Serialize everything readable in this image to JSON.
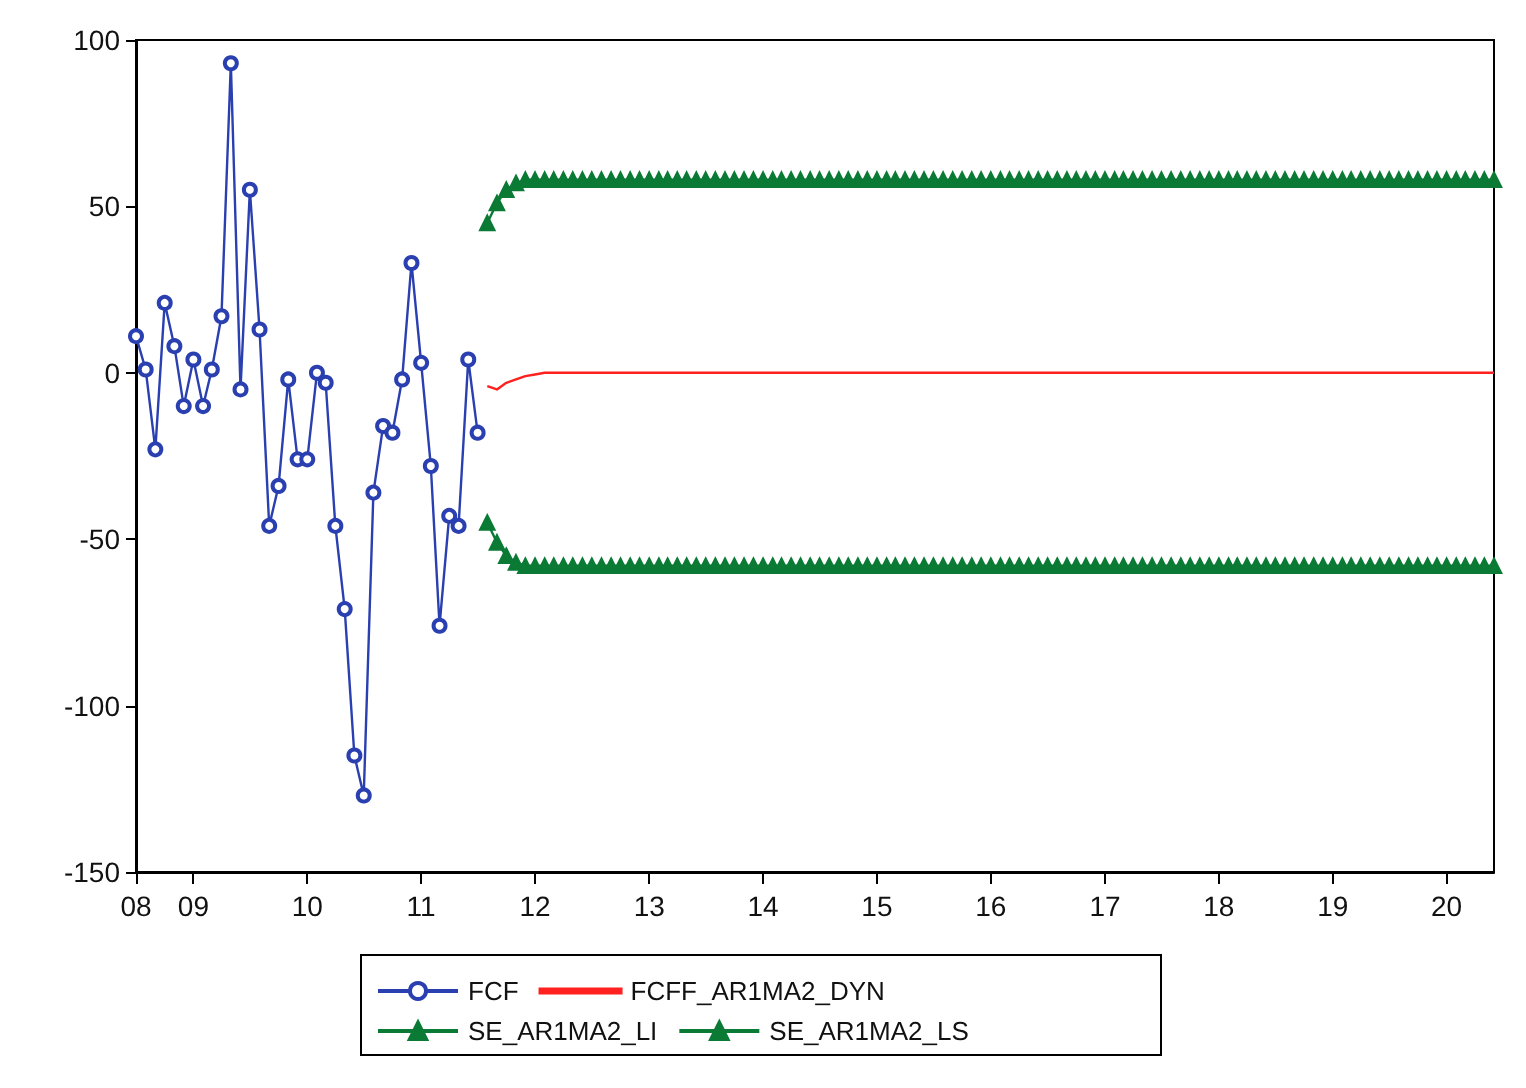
{
  "chart_data": {
    "type": "line",
    "xlim": [
      "2008-07",
      "2020-06"
    ],
    "ylim": [
      -150,
      100
    ],
    "yticks": [
      -150,
      -100,
      -50,
      0,
      50,
      100
    ],
    "xticks": [
      {
        "value": "2008-07",
        "label": "08"
      },
      {
        "value": "2009-01",
        "label": "09"
      },
      {
        "value": "2010-01",
        "label": "10"
      },
      {
        "value": "2011-01",
        "label": "11"
      },
      {
        "value": "2012-01",
        "label": "12"
      },
      {
        "value": "2013-01",
        "label": "13"
      },
      {
        "value": "2014-01",
        "label": "14"
      },
      {
        "value": "2015-01",
        "label": "15"
      },
      {
        "value": "2016-01",
        "label": "16"
      },
      {
        "value": "2017-01",
        "label": "17"
      },
      {
        "value": "2018-01",
        "label": "18"
      },
      {
        "value": "2019-01",
        "label": "19"
      },
      {
        "value": "2020-01",
        "label": "20"
      }
    ],
    "grid": false,
    "legend": "bottom",
    "line_style": "solid",
    "x": [
      "2011-08",
      "2011-09",
      "2011-10",
      "2011-11",
      "2011-12",
      "2012-01",
      "2012-02",
      "2012-03",
      "2012-04",
      "2012-05",
      "2012-06",
      "2012-07",
      "2012-08",
      "2012-09",
      "2012-10",
      "2012-11",
      "2012-12",
      "2013-01",
      "2013-02",
      "2013-03",
      "2013-04",
      "2013-05",
      "2013-06",
      "2013-07",
      "2013-08",
      "2013-09",
      "2013-10",
      "2013-11",
      "2013-12",
      "2014-01",
      "2014-02",
      "2014-03",
      "2014-04",
      "2014-05",
      "2014-06",
      "2014-07",
      "2014-08",
      "2014-09",
      "2014-10",
      "2014-11",
      "2014-12",
      "2015-01",
      "2015-02",
      "2015-03",
      "2015-04",
      "2015-05",
      "2015-06",
      "2015-07",
      "2015-08",
      "2015-09",
      "2015-10",
      "2015-11",
      "2015-12",
      "2016-01",
      "2016-02",
      "2016-03",
      "2016-04",
      "2016-05",
      "2016-06",
      "2016-07",
      "2016-08",
      "2016-09",
      "2016-10",
      "2016-11",
      "2016-12",
      "2017-01",
      "2017-02",
      "2017-03",
      "2017-04",
      "2017-05",
      "2017-06",
      "2017-07",
      "2017-08",
      "2017-09",
      "2017-10",
      "2017-11",
      "2017-12",
      "2018-01",
      "2018-02",
      "2018-03",
      "2018-04",
      "2018-05",
      "2018-06",
      "2018-07",
      "2018-08",
      "2018-09",
      "2018-10",
      "2018-11",
      "2018-12",
      "2019-01",
      "2019-02",
      "2019-03",
      "2019-04",
      "2019-05",
      "2019-06",
      "2019-07",
      "2019-08",
      "2019-09",
      "2019-10",
      "2019-11",
      "2019-12",
      "2020-01",
      "2020-02",
      "2020-03",
      "2020-04",
      "2020-05",
      "2020-06"
    ],
    "series": [
      {
        "name": "FCF",
        "color": "#2a3fb0",
        "marker": "circle",
        "x": [
          "2008-07",
          "2008-08",
          "2008-09",
          "2008-10",
          "2008-11",
          "2008-12",
          "2009-01",
          "2009-02",
          "2009-03",
          "2009-04",
          "2009-05",
          "2009-06",
          "2009-07",
          "2009-08",
          "2009-09",
          "2009-10",
          "2009-11",
          "2009-12",
          "2010-01",
          "2010-02",
          "2010-03",
          "2010-04",
          "2010-05",
          "2010-06",
          "2010-07",
          "2010-08",
          "2010-09",
          "2010-10",
          "2010-11",
          "2010-12",
          "2011-01",
          "2011-02",
          "2011-03",
          "2011-04",
          "2011-05",
          "2011-06",
          "2011-07"
        ],
        "values": [
          11,
          1,
          -23,
          21,
          8,
          -10,
          4,
          -10,
          1,
          17,
          93,
          -5,
          55,
          13,
          -46,
          -34,
          -2,
          -26,
          -26,
          0,
          -3,
          -46,
          -71,
          -115,
          -127,
          -36,
          -16,
          -18,
          -2,
          33,
          3,
          -28,
          -76,
          -43,
          -46,
          4,
          -18
        ]
      },
      {
        "name": "FCFF_AR1MA2_DYN",
        "color": "#ff2020",
        "marker": "none",
        "values": [
          -4,
          -5,
          -3,
          -2,
          -1,
          -0.5,
          0,
          0,
          0,
          0,
          0,
          0,
          0,
          0,
          0,
          0,
          0,
          0,
          0,
          0,
          0,
          0,
          0,
          0,
          0,
          0,
          0,
          0,
          0,
          0,
          0,
          0,
          0,
          0,
          0,
          0,
          0,
          0,
          0,
          0,
          0,
          0,
          0,
          0,
          0,
          0,
          0,
          0,
          0,
          0,
          0,
          0,
          0,
          0,
          0,
          0,
          0,
          0,
          0,
          0,
          0,
          0,
          0,
          0,
          0,
          0,
          0,
          0,
          0,
          0,
          0,
          0,
          0,
          0,
          0,
          0,
          0,
          0,
          0,
          0,
          0,
          0,
          0,
          0,
          0,
          0,
          0,
          0,
          0,
          0,
          0,
          0,
          0,
          0,
          0,
          0,
          0,
          0,
          0,
          0,
          0,
          0,
          0,
          0,
          0,
          0,
          0
        ]
      },
      {
        "name": "SE_AR1MA2_LI",
        "color": "#0a7a35",
        "marker": "triangle",
        "values": [
          -45,
          -51,
          -55,
          -57,
          -58,
          -58,
          -58,
          -58,
          -58,
          -58,
          -58,
          -58,
          -58,
          -58,
          -58,
          -58,
          -58,
          -58,
          -58,
          -58,
          -58,
          -58,
          -58,
          -58,
          -58,
          -58,
          -58,
          -58,
          -58,
          -58,
          -58,
          -58,
          -58,
          -58,
          -58,
          -58,
          -58,
          -58,
          -58,
          -58,
          -58,
          -58,
          -58,
          -58,
          -58,
          -58,
          -58,
          -58,
          -58,
          -58,
          -58,
          -58,
          -58,
          -58,
          -58,
          -58,
          -58,
          -58,
          -58,
          -58,
          -58,
          -58,
          -58,
          -58,
          -58,
          -58,
          -58,
          -58,
          -58,
          -58,
          -58,
          -58,
          -58,
          -58,
          -58,
          -58,
          -58,
          -58,
          -58,
          -58,
          -58,
          -58,
          -58,
          -58,
          -58,
          -58,
          -58,
          -58,
          -58,
          -58,
          -58,
          -58,
          -58,
          -58,
          -58,
          -58,
          -58,
          -58,
          -58,
          -58,
          -58,
          -58,
          -58,
          -58,
          -58,
          -58,
          -58
        ]
      },
      {
        "name": "SE_AR1MA2_LS",
        "color": "#0a7a35",
        "marker": "triangle",
        "values": [
          45,
          51,
          55,
          57,
          58,
          58,
          58,
          58,
          58,
          58,
          58,
          58,
          58,
          58,
          58,
          58,
          58,
          58,
          58,
          58,
          58,
          58,
          58,
          58,
          58,
          58,
          58,
          58,
          58,
          58,
          58,
          58,
          58,
          58,
          58,
          58,
          58,
          58,
          58,
          58,
          58,
          58,
          58,
          58,
          58,
          58,
          58,
          58,
          58,
          58,
          58,
          58,
          58,
          58,
          58,
          58,
          58,
          58,
          58,
          58,
          58,
          58,
          58,
          58,
          58,
          58,
          58,
          58,
          58,
          58,
          58,
          58,
          58,
          58,
          58,
          58,
          58,
          58,
          58,
          58,
          58,
          58,
          58,
          58,
          58,
          58,
          58,
          58,
          58,
          58,
          58,
          58,
          58,
          58,
          58,
          58,
          58,
          58,
          58,
          58,
          58,
          58,
          58,
          58,
          58,
          58,
          58
        ]
      }
    ]
  }
}
